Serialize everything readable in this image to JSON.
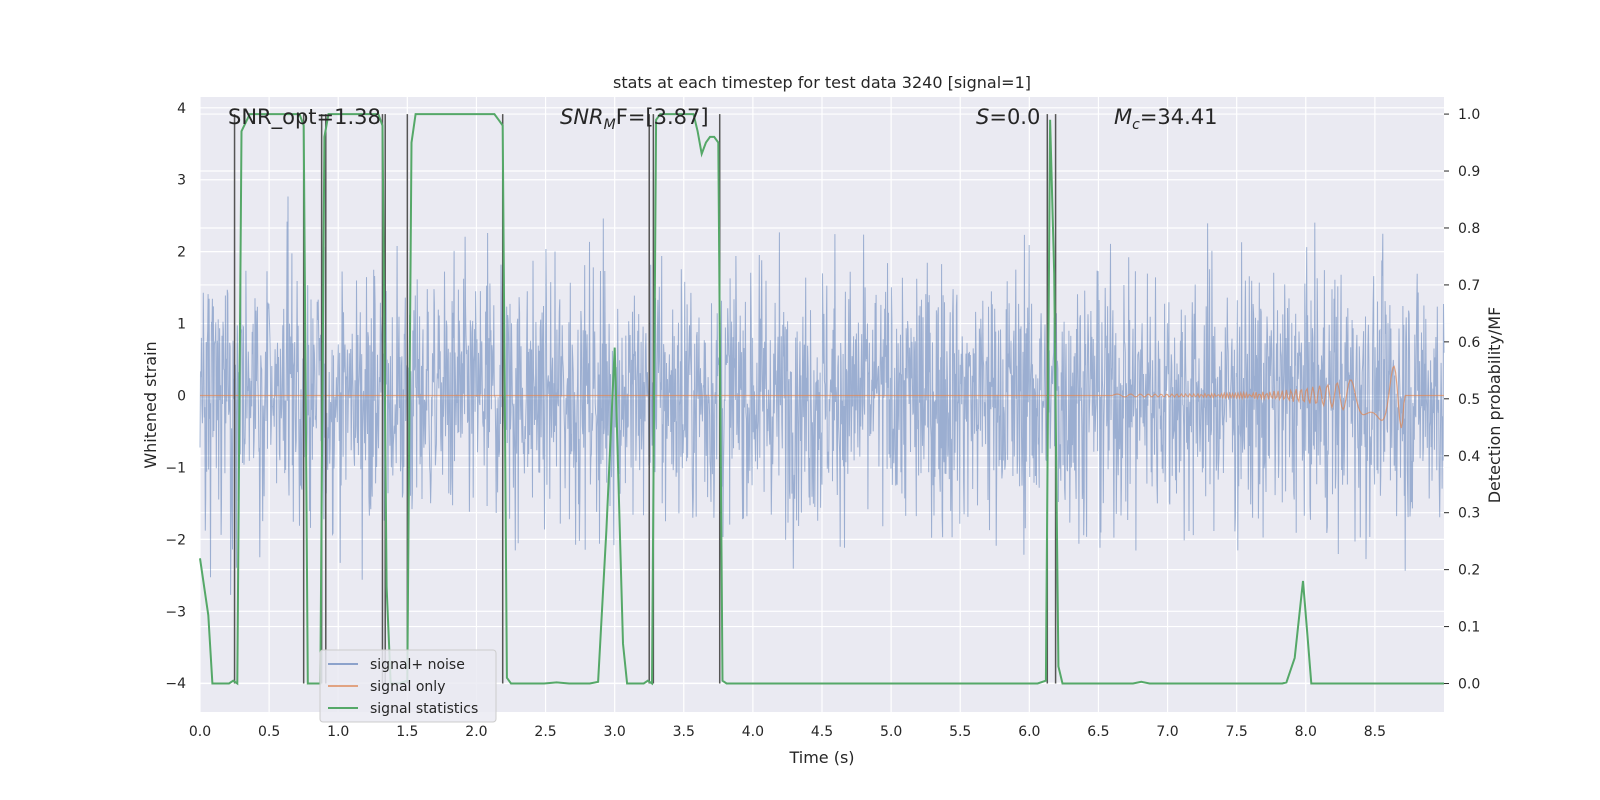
{
  "chart_data": {
    "type": "line",
    "title": "stats at each timestep for test data 3240 [signal=1]",
    "xlabel": "Time (s)",
    "ylabel_left": "Whitened strain",
    "ylabel_right": "Detection probability/MF",
    "xlim": [
      0.0,
      9.0
    ],
    "ylim_left": [
      -4.4,
      4.15
    ],
    "ylim_right": [
      -0.05,
      1.03
    ],
    "x_ticks": [
      0.0,
      0.5,
      1.0,
      1.5,
      2.0,
      2.5,
      3.0,
      3.5,
      4.0,
      4.5,
      5.0,
      5.5,
      6.0,
      6.5,
      7.0,
      7.5,
      8.0,
      8.5
    ],
    "x_tick_labels": [
      "0.0",
      "0.5",
      "1.0",
      "1.5",
      "2.0",
      "2.5",
      "3.0",
      "3.5",
      "4.0",
      "4.5",
      "5.0",
      "5.5",
      "6.0",
      "6.5",
      "7.0",
      "7.5",
      "8.0",
      "8.5"
    ],
    "y_left_ticks": [
      4,
      3,
      2,
      1,
      0,
      -1,
      -2,
      -3,
      -4
    ],
    "y_left_tick_labels": [
      "4",
      "3",
      "2",
      "1",
      "0",
      "−1",
      "−2",
      "−3",
      "−4"
    ],
    "y_right_ticks": [
      1.0,
      0.9,
      0.8,
      0.7,
      0.6,
      0.5,
      0.4,
      0.3,
      0.2,
      0.1,
      0.0
    ],
    "y_right_tick_labels": [
      "1.0",
      "0.9",
      "0.8",
      "0.7",
      "0.6",
      "0.5",
      "0.4",
      "0.3",
      "0.2",
      "0.1",
      "0.0"
    ],
    "grid": true,
    "annotations": {
      "snr_opt": "SNR_opt=1.38",
      "snr_mf_main": "SNR",
      "snr_mf_sub": "M",
      "snr_mf_rest": "F=[3.87]",
      "s_main": "S",
      "s_rest": "=0.0",
      "mc_main": "M",
      "mc_sub": "c",
      "mc_rest": "=34.41"
    },
    "legend": {
      "placement": "lower-left",
      "entries": [
        "signal+ noise",
        "signal only",
        "signal statistics"
      ]
    },
    "colors": {
      "noise": "#4c72b0",
      "signal": "#dd8452",
      "stats": "#55a868",
      "vline": "#555555",
      "background": "#eaeaf2",
      "grid": "#ffffff"
    },
    "series": [
      {
        "name": "signal statistics",
        "axis": "right",
        "x": [
          0.0,
          0.06,
          0.09,
          0.15,
          0.21,
          0.24,
          0.27,
          0.3,
          0.36,
          0.45,
          0.54,
          0.63,
          0.72,
          0.75,
          0.78,
          0.81,
          0.84,
          0.87,
          0.9,
          0.93,
          0.96,
          1.02,
          1.11,
          1.2,
          1.29,
          1.32,
          1.35,
          1.38,
          1.44,
          1.5,
          1.53,
          1.56,
          1.62,
          1.71,
          1.8,
          1.89,
          1.98,
          2.07,
          2.13,
          2.16,
          2.19,
          2.22,
          2.25,
          2.31,
          2.4,
          2.49,
          2.58,
          2.67,
          2.76,
          2.82,
          2.88,
          2.94,
          3.0,
          3.06,
          3.09,
          3.15,
          3.21,
          3.24,
          3.27,
          3.3,
          3.33,
          3.39,
          3.45,
          3.51,
          3.57,
          3.6,
          3.63,
          3.66,
          3.69,
          3.72,
          3.75,
          3.78,
          3.81,
          3.84,
          3.9,
          3.99,
          4.08,
          4.17,
          4.26,
          4.35,
          4.44,
          4.53,
          4.62,
          4.71,
          4.8,
          4.89,
          4.98,
          5.07,
          5.16,
          5.25,
          5.34,
          5.43,
          5.52,
          5.61,
          5.7,
          5.79,
          5.88,
          5.97,
          6.06,
          6.12,
          6.15,
          6.18,
          6.21,
          6.24,
          6.27,
          6.3,
          6.33,
          6.39,
          6.48,
          6.57,
          6.66,
          6.75,
          6.81,
          6.87,
          6.96,
          7.05,
          7.14,
          7.23,
          7.32,
          7.41,
          7.5,
          7.59,
          7.68,
          7.77,
          7.83,
          7.86,
          7.92,
          7.98,
          8.01,
          8.04,
          8.07,
          8.1,
          8.19,
          8.28,
          8.37,
          8.46,
          8.55,
          8.64,
          8.73,
          8.82,
          8.91,
          9.0
        ],
        "values": [
          0.22,
          0.12,
          0.0,
          0.0,
          0.0,
          0.005,
          0.0,
          0.97,
          1.0,
          1.0,
          1.0,
          1.0,
          1.0,
          0.98,
          0.0,
          0.0,
          0.0,
          0.0,
          0.96,
          1.0,
          1.0,
          1.0,
          1.0,
          1.0,
          1.0,
          0.98,
          0.17,
          0.0,
          0.0,
          0.005,
          0.95,
          1.0,
          1.0,
          1.0,
          1.0,
          1.0,
          1.0,
          1.0,
          1.0,
          0.99,
          0.98,
          0.01,
          0.0,
          0.0,
          0.0,
          0.0,
          0.002,
          0.0,
          0.0,
          0.0,
          0.003,
          0.27,
          0.59,
          0.07,
          0.0,
          0.0,
          0.0,
          0.005,
          0.0,
          0.99,
          1.0,
          1.0,
          1.0,
          1.0,
          1.0,
          0.97,
          0.93,
          0.95,
          0.96,
          0.96,
          0.95,
          0.005,
          0.0,
          0.0,
          0.0,
          0.0,
          0.0,
          0.0,
          0.0,
          0.0,
          0.0,
          0.0,
          0.0,
          0.0,
          0.0,
          0.0,
          0.0,
          0.0,
          0.0,
          0.0,
          0.0,
          0.0,
          0.0,
          0.0,
          0.0,
          0.0,
          0.0,
          0.0,
          0.0,
          0.005,
          0.99,
          0.72,
          0.03,
          0.0,
          0.0,
          0.0,
          0.0,
          0.0,
          0.0,
          0.0,
          0.0,
          0.0,
          0.003,
          0.0,
          0.0,
          0.0,
          0.0,
          0.0,
          0.0,
          0.0,
          0.0,
          0.0,
          0.0,
          0.0,
          0.0,
          0.002,
          0.045,
          0.18,
          0.09,
          0.0,
          0.0,
          0.0,
          0.0,
          0.0,
          0.0,
          0.0,
          0.0,
          0.0,
          0.0,
          0.0,
          0.0,
          0.0
        ]
      }
    ],
    "detection_markers_x": [
      0.25,
      0.75,
      0.88,
      0.91,
      1.32,
      1.34,
      1.5,
      2.19,
      3.25,
      3.28,
      3.76,
      6.13,
      6.19
    ]
  }
}
